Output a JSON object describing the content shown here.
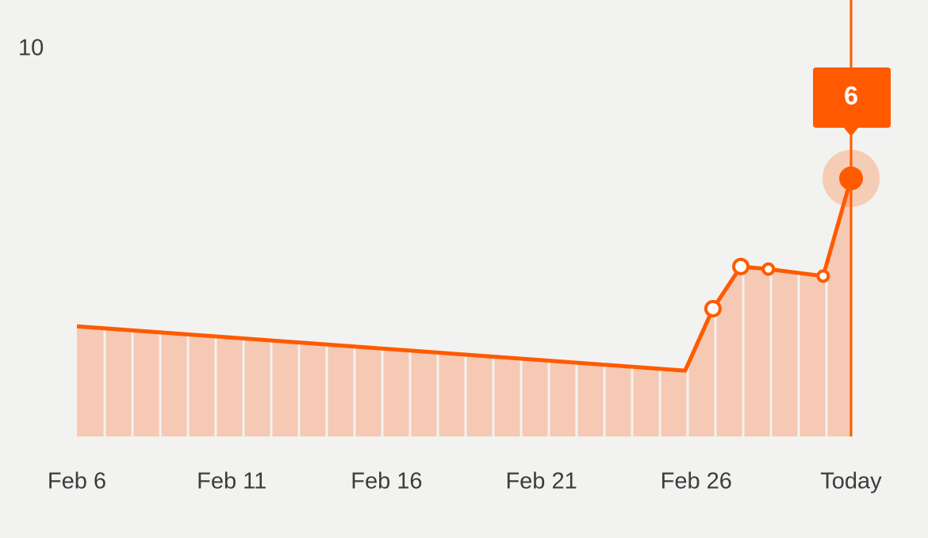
{
  "chart_data": {
    "type": "area",
    "x": [
      0,
      19.64,
      20.54,
      21.44,
      22.33,
      24.1,
      25
    ],
    "series": [
      {
        "color": "#ff5a00",
        "fill": "#f5c9b3",
        "values": [
          2.56,
          1.53,
          2.97,
          3.95,
          3.89,
          3.73,
          6
        ]
      }
    ],
    "xlim": [
      0,
      25
    ],
    "xticks": [
      {
        "value": 0,
        "label": "Feb 6"
      },
      {
        "value": 5,
        "label": "Feb 11"
      },
      {
        "value": 10,
        "label": "Feb 16"
      },
      {
        "value": 15,
        "label": "Feb 21"
      },
      {
        "value": 20,
        "label": "Feb 26"
      },
      {
        "value": 25,
        "label": "Today"
      }
    ],
    "ylim": [
      0,
      10
    ],
    "yticks": [
      10
    ],
    "grid": false
  }
}
